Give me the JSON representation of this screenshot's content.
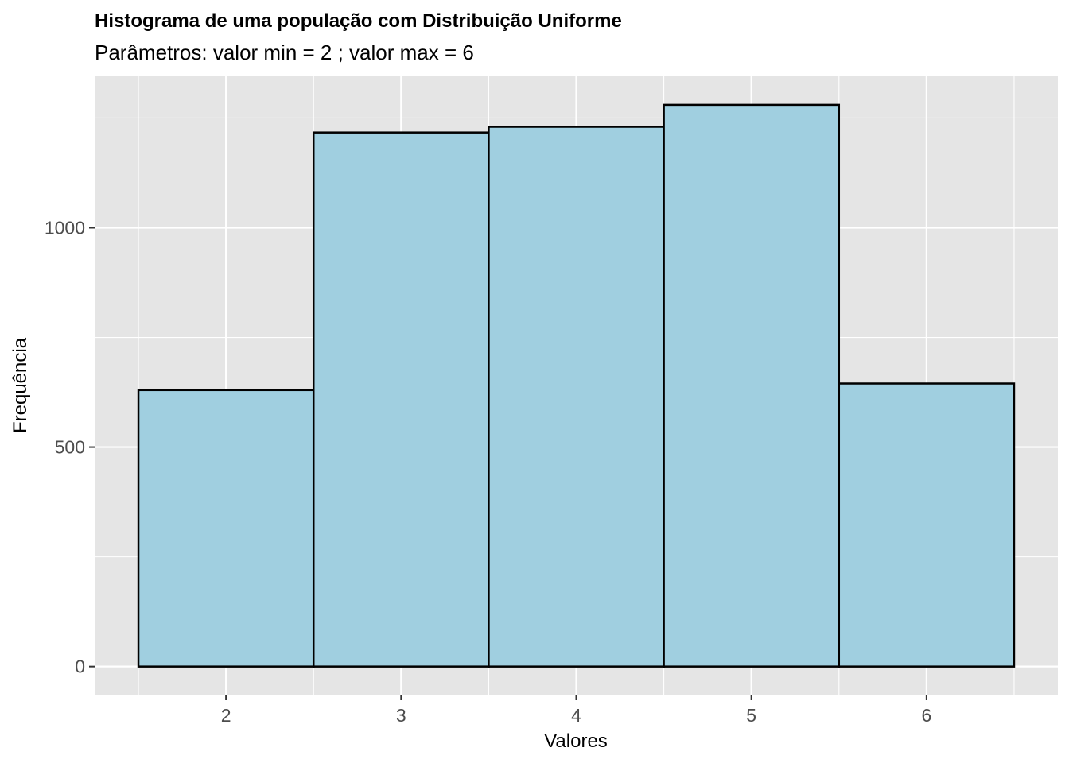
{
  "chart_data": {
    "type": "bar",
    "title": "Histograma de uma população com Distribuição Uniforme",
    "subtitle": "Parâmetros: valor min = 2 ; valor max = 6",
    "xlabel": "Valores",
    "ylabel": "Frequência",
    "categories": [
      "2",
      "3",
      "4",
      "5",
      "6"
    ],
    "bins": [
      {
        "center": 2,
        "start": 1.5,
        "end": 2.5,
        "value": 630
      },
      {
        "center": 3,
        "start": 2.5,
        "end": 3.5,
        "value": 1217
      },
      {
        "center": 4,
        "start": 3.5,
        "end": 4.5,
        "value": 1230
      },
      {
        "center": 5,
        "start": 4.5,
        "end": 5.5,
        "value": 1280
      },
      {
        "center": 6,
        "start": 5.5,
        "end": 6.5,
        "value": 645
      }
    ],
    "xlim": [
      1.25,
      6.75
    ],
    "ylim": [
      -64,
      1345
    ],
    "x_ticks": [
      2,
      3,
      4,
      5,
      6
    ],
    "y_ticks": [
      0,
      500,
      1000
    ],
    "y_minor_ticks": [
      250,
      750,
      1250
    ],
    "grid": true,
    "legend": "none",
    "colors": {
      "bar_fill": "#a0cfe0",
      "bar_stroke": "#000000",
      "panel_background": "#e5e5e5",
      "grid": "#ffffff",
      "tick_text": "#4d4d4d"
    }
  }
}
